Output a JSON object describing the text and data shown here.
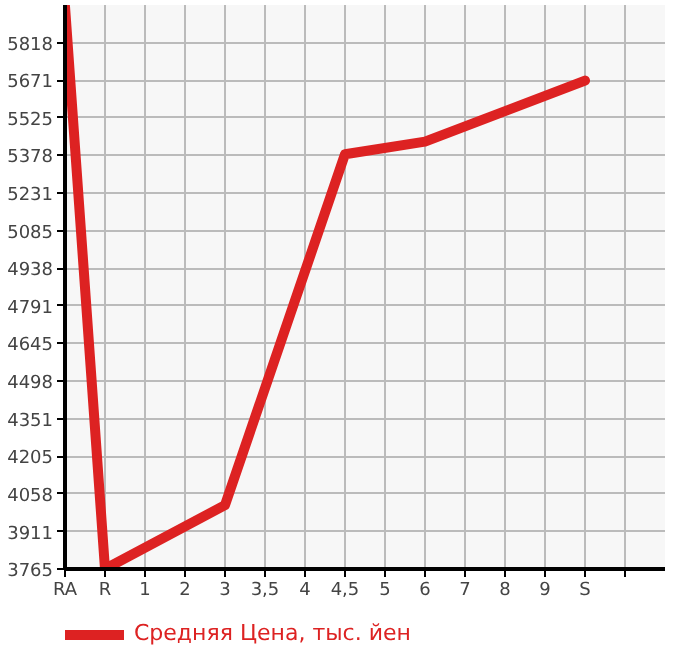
{
  "chart_data": {
    "type": "line",
    "categories": [
      "RA",
      "R",
      "1",
      "2",
      "3",
      "3,5",
      "4",
      "4,5",
      "5",
      "6",
      "7",
      "8",
      "9",
      "S",
      null
    ],
    "series": [
      {
        "name": "Средняя Цена, тыс. йен",
        "color": "#dd2222",
        "values": [
          5960,
          3765,
          null,
          null,
          4014,
          null,
          null,
          5383,
          null,
          5432,
          null,
          null,
          null,
          5670,
          null
        ]
      }
    ],
    "ylim": [
      3765,
      5965
    ],
    "yticks": [
      3765,
      3911,
      4058,
      4205,
      4351,
      4498,
      4645,
      4791,
      4938,
      5085,
      5231,
      5378,
      5525,
      5671,
      5818
    ],
    "grid": true,
    "legend": "bottom",
    "marker": "none",
    "line_style": "solid"
  }
}
